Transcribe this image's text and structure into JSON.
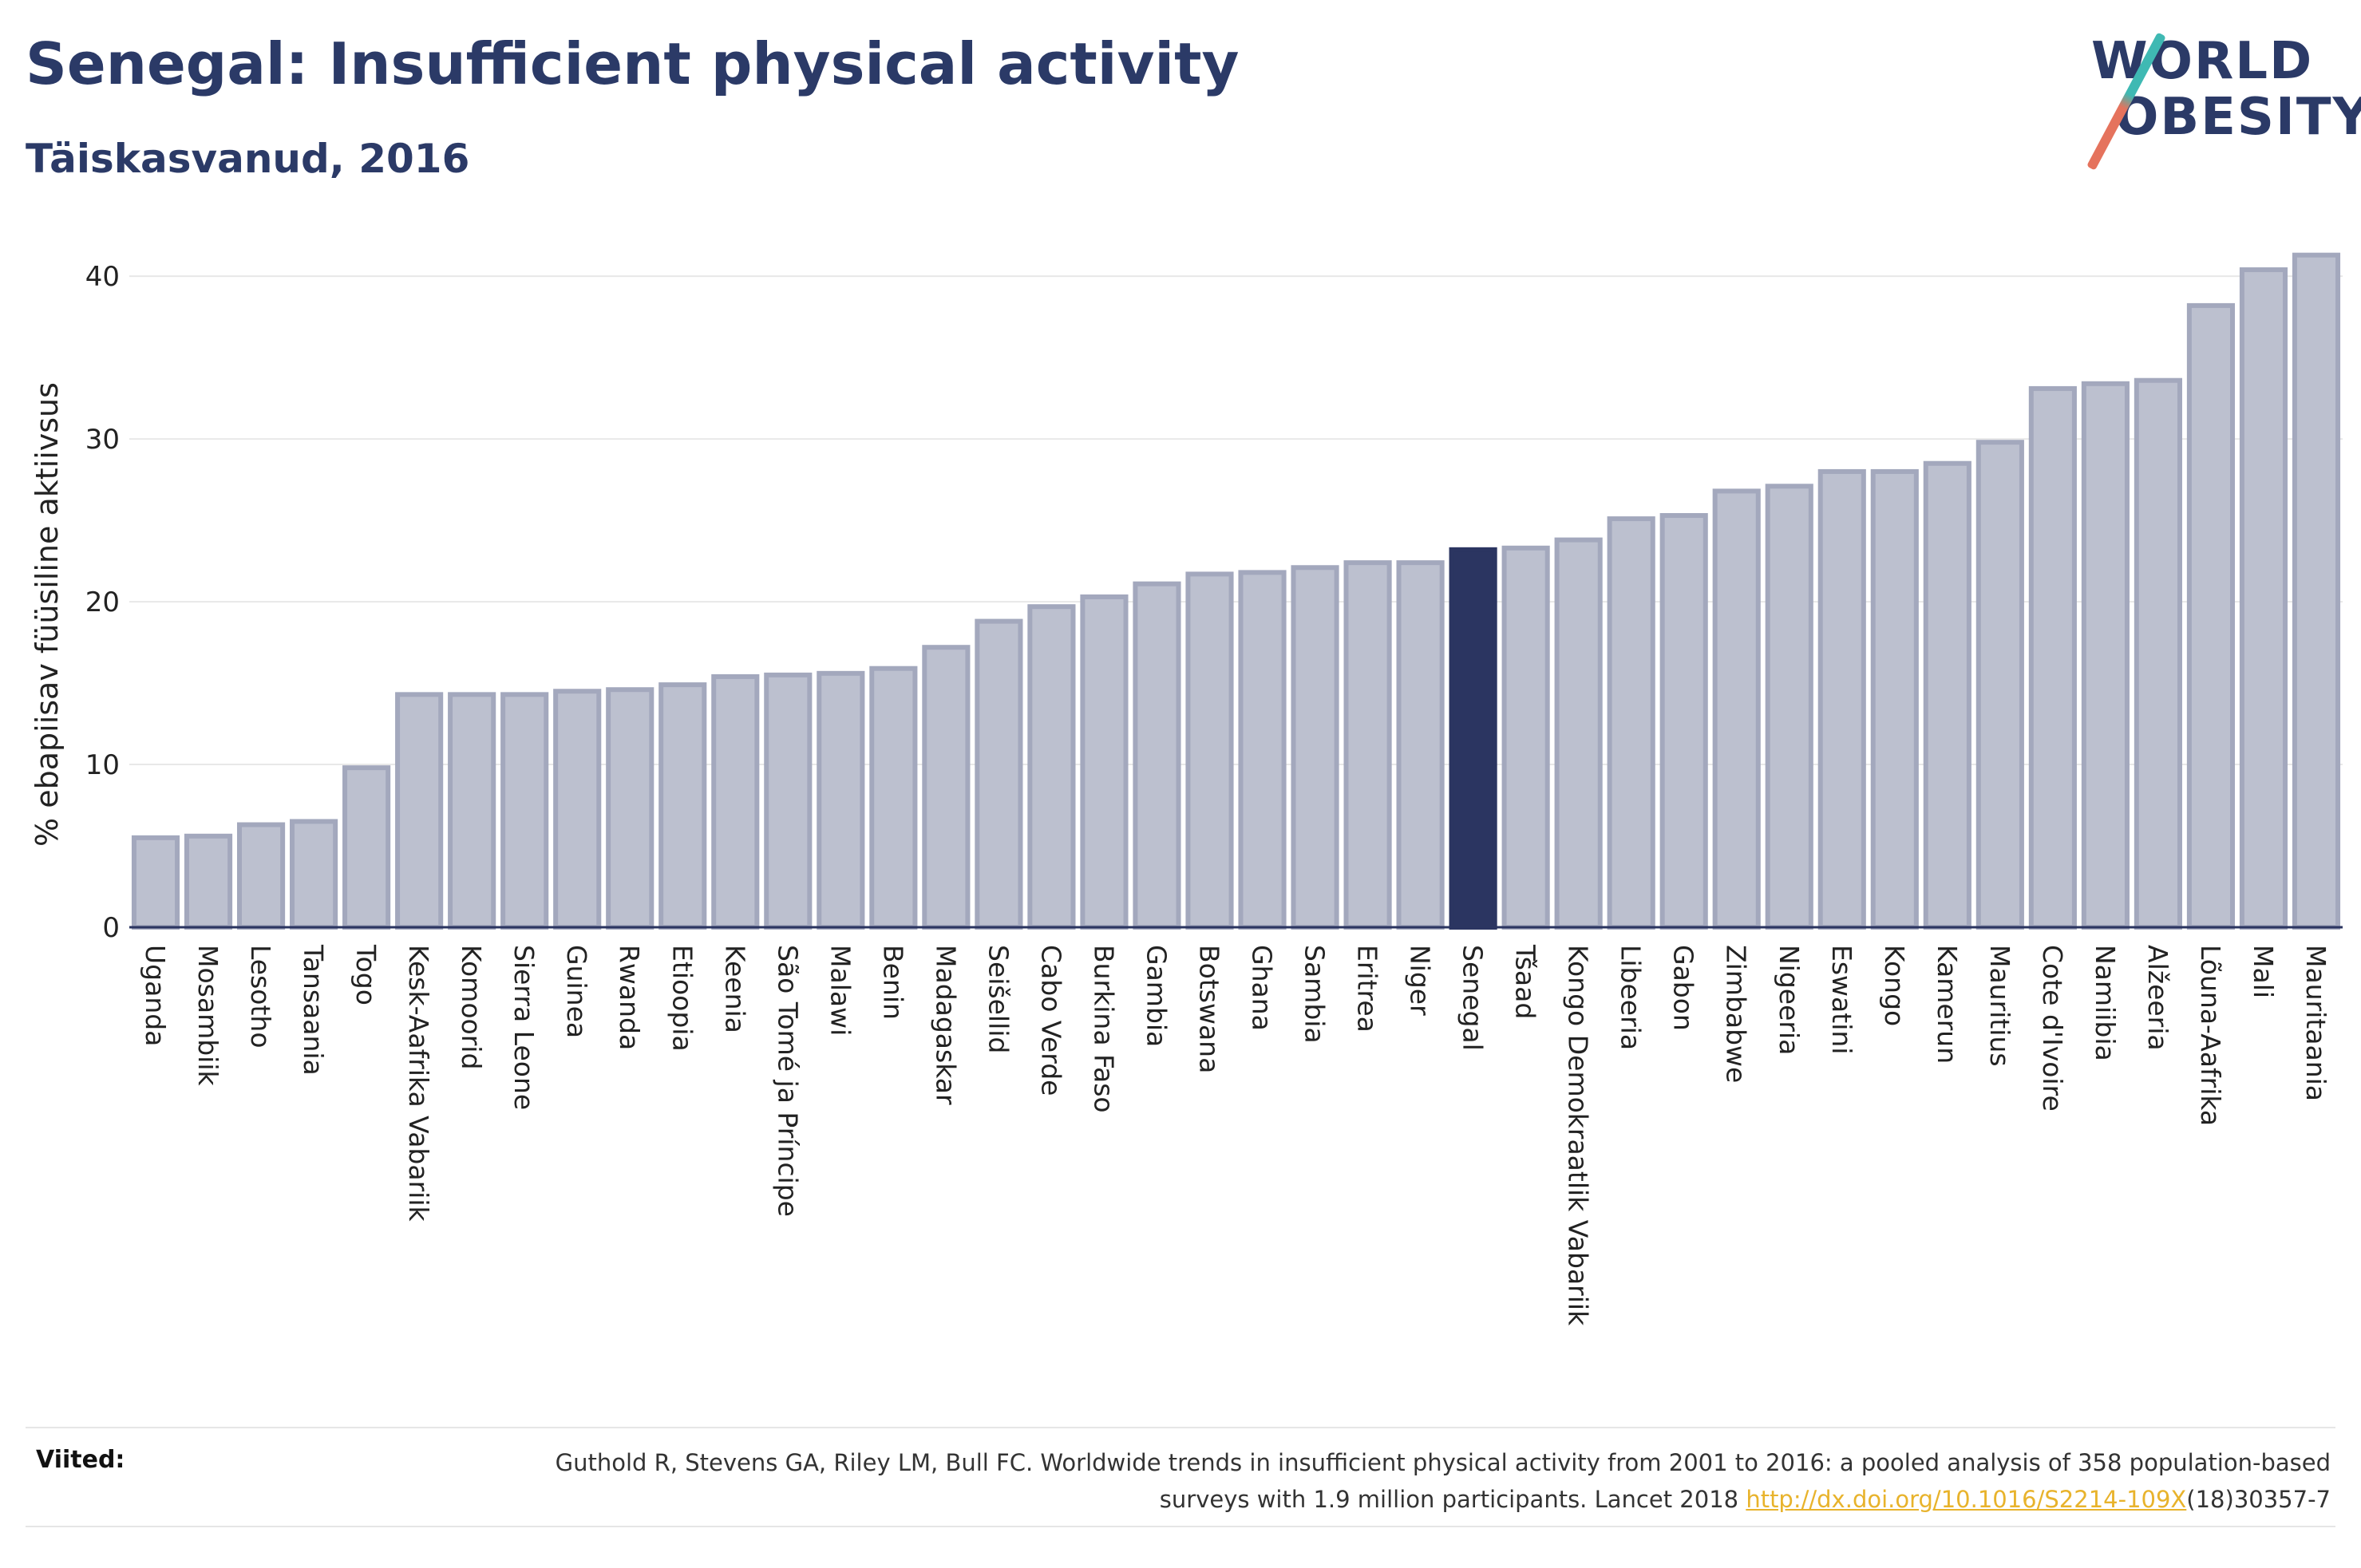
{
  "header": {
    "title": "Senegal: Insufficient physical activity",
    "subtitle": "Täiskasvanud, 2016"
  },
  "logo": {
    "line1": "WORLD",
    "line2": "OBESITY"
  },
  "colors": {
    "bar_default": "#bcc0cf",
    "bar_default_stroke": "#a3a8bd",
    "bar_highlight": "#2b3561",
    "gridline": "#e8e8e8",
    "axis": "#2b3561"
  },
  "chart_data": {
    "type": "bar",
    "title": "Senegal: Insufficient physical activity",
    "subtitle": "Täiskasvanud, 2016",
    "ylabel": "% ebapiisav füüsiline aktiivsus",
    "xlabel": "",
    "ylim": [
      0,
      43
    ],
    "yticks": [
      0,
      10,
      20,
      30,
      40
    ],
    "grid": true,
    "highlight": "Senegal",
    "categories": [
      "Uganda",
      "Mosambiik",
      "Lesotho",
      "Tansaania",
      "Togo",
      "Kesk-Aafrika Vabariik",
      "Komoorid",
      "Sierra Leone",
      "Guinea",
      "Rwanda",
      "Etioopia",
      "Keenia",
      "São Tomé ja Príncipe",
      "Malawi",
      "Benin",
      "Madagaskar",
      "Seišellid",
      "Cabo Verde",
      "Burkina Faso",
      "Gambia",
      "Botswana",
      "Ghana",
      "Sambia",
      "Eritrea",
      "Niger",
      "Senegal",
      "Tšaad",
      "Kongo Demokraatlik Vabariik",
      "Libeeria",
      "Gabon",
      "Zimbabwe",
      "Nigeeria",
      "Eswatini",
      "Kongo",
      "Kamerun",
      "Mauritius",
      "Cote d'Ivoire",
      "Namiibia",
      "Alžeeria",
      "Lõuna-Aafrika",
      "Mali",
      "Mauritaania"
    ],
    "values": [
      5.5,
      5.6,
      6.3,
      6.5,
      9.8,
      14.3,
      14.3,
      14.3,
      14.5,
      14.6,
      14.9,
      15.4,
      15.5,
      15.6,
      15.9,
      17.2,
      18.8,
      19.7,
      20.3,
      21.1,
      21.7,
      21.8,
      22.1,
      22.4,
      22.4,
      23.2,
      23.3,
      23.8,
      25.1,
      25.3,
      26.8,
      27.1,
      28.0,
      28.0,
      28.5,
      29.8,
      33.1,
      33.4,
      33.6,
      38.2,
      40.4,
      41.3
    ]
  },
  "references": {
    "label": "Viited:",
    "text_before_link": "Guthold R, Stevens GA, Riley LM, Bull FC. Worldwide trends in insufficient physical activity from 2001 to 2016: a pooled analysis of 358 population-based surveys with 1.9 million participants. Lancet 2018 ",
    "link_text": "http://dx.doi.org/10.1016/S2214-109X",
    "text_after_link": "(18)30357-7"
  }
}
